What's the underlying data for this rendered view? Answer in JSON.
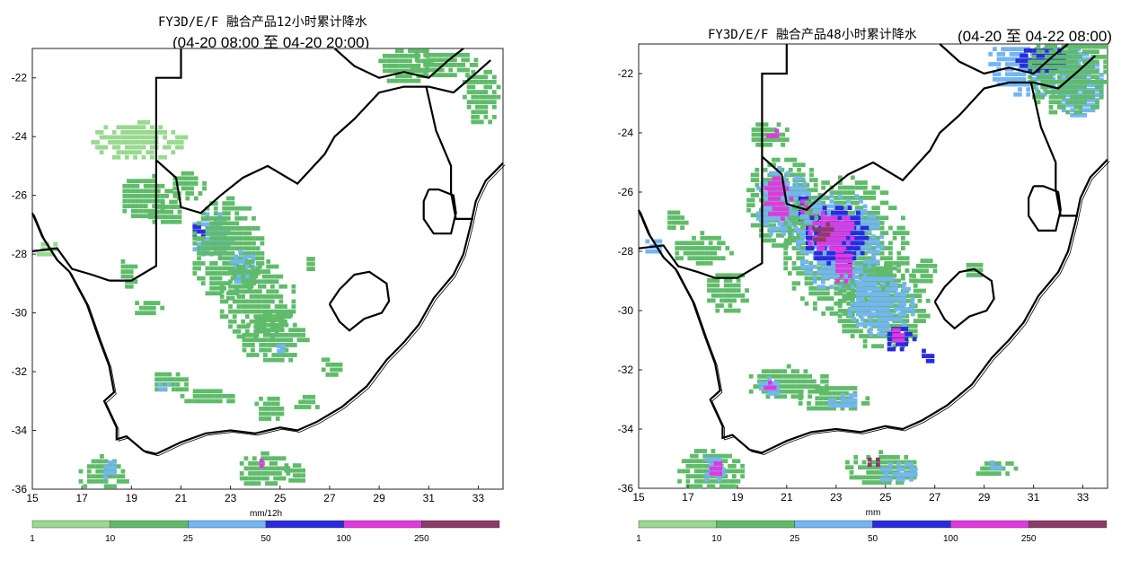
{
  "colors": {
    "c1": "#98d98f",
    "c2": "#5fbb6a",
    "c3": "#74b5f4",
    "c4": "#2a2adf",
    "c5": "#e039e0",
    "c6": "#8c3a6a",
    "border": "#000000"
  },
  "legend_ticks": [
    "1",
    "10",
    "25",
    "50",
    "100",
    "250"
  ],
  "maps": [
    {
      "title": "FY3D/E/F 融合产品12小时累计降水",
      "subtitle": "(04-20 08:00 至 04-20 20:00)",
      "unit": "mm/12h",
      "x_ticks": [
        "15",
        "17",
        "19",
        "21",
        "23",
        "25",
        "27",
        "29",
        "31",
        "33"
      ],
      "y_ticks": [
        "-22",
        "-24",
        "-26",
        "-28",
        "-30",
        "-32",
        "-34",
        "-36"
      ],
      "x_range": [
        15,
        34
      ],
      "y_range": [
        -36,
        -21
      ],
      "rain_cells": [
        [
          19.2,
          -24.1,
          1,
          2,
          0.7
        ],
        [
          19.5,
          -26.0,
          2,
          1.2,
          0.8
        ],
        [
          20.3,
          -26.5,
          2,
          0.8,
          0.5
        ],
        [
          21.2,
          -25.6,
          2,
          0.7,
          0.6
        ],
        [
          22.2,
          -27.3,
          3,
          0.9,
          0.8
        ],
        [
          21.6,
          -27.2,
          4,
          0.3,
          0.3
        ],
        [
          22.8,
          -27.8,
          2,
          1.5,
          1.8
        ],
        [
          23.4,
          -28.5,
          3,
          0.6,
          0.7
        ],
        [
          24.0,
          -29.5,
          2,
          1.6,
          1.4
        ],
        [
          24.7,
          -30.8,
          2,
          1.4,
          0.9
        ],
        [
          25.0,
          -31.1,
          3,
          0.3,
          0.3
        ],
        [
          18.8,
          -28.6,
          2,
          0.4,
          0.6
        ],
        [
          19.5,
          -29.8,
          2,
          0.7,
          0.3
        ],
        [
          20.5,
          -32.3,
          2,
          0.9,
          0.4
        ],
        [
          20.2,
          -32.5,
          3,
          0.3,
          0.2
        ],
        [
          22.0,
          -32.8,
          2,
          1.2,
          0.3
        ],
        [
          24.5,
          -33.2,
          2,
          0.7,
          0.5
        ],
        [
          26.0,
          -33.0,
          2,
          0.6,
          0.3
        ],
        [
          17.8,
          -35.4,
          2,
          1.1,
          0.6
        ],
        [
          18.0,
          -35.3,
          3,
          0.3,
          0.4
        ],
        [
          24.3,
          -35.3,
          2,
          1.1,
          0.6
        ],
        [
          24.2,
          -35.1,
          5,
          0.2,
          0.2
        ],
        [
          25.5,
          -35.4,
          2,
          0.5,
          0.4
        ],
        [
          30.0,
          -21.5,
          2,
          1.2,
          0.7
        ],
        [
          31.6,
          -21.4,
          2,
          1.5,
          0.6
        ],
        [
          33.0,
          -22.6,
          2,
          0.8,
          1.0
        ],
        [
          27.0,
          -31.8,
          2,
          0.5,
          0.4
        ],
        [
          15.5,
          -27.8,
          1,
          0.5,
          0.3
        ],
        [
          26.2,
          -28.3,
          2,
          0.3,
          0.3
        ]
      ]
    },
    {
      "title": "FY3D/E/F 融合产品48小时累计降水",
      "subtitle": "(04-20 至 04-22 08:00)",
      "unit": "mm",
      "x_ticks": [
        "15",
        "17",
        "19",
        "21",
        "23",
        "25",
        "27",
        "29",
        "31",
        "33"
      ],
      "y_ticks": [
        "-22",
        "-24",
        "-26",
        "-28",
        "-30",
        "-32",
        "-34",
        "-36"
      ],
      "x_range": [
        15,
        34
      ],
      "y_range": [
        -36,
        -21
      ],
      "rain_cells": [
        [
          20.2,
          -24.0,
          2,
          0.8,
          0.5
        ],
        [
          20.3,
          -24.0,
          5,
          0.3,
          0.2
        ],
        [
          20.8,
          -26.3,
          2,
          1.6,
          1.6
        ],
        [
          20.8,
          -26.3,
          3,
          1.2,
          1.2
        ],
        [
          20.5,
          -26.2,
          5,
          0.6,
          0.8
        ],
        [
          21.8,
          -26.5,
          4,
          0.5,
          0.5
        ],
        [
          21.8,
          -26.6,
          5,
          0.4,
          0.5
        ],
        [
          23.3,
          -27.8,
          2,
          2.6,
          2.4
        ],
        [
          23.0,
          -27.6,
          3,
          1.8,
          1.7
        ],
        [
          22.9,
          -27.4,
          4,
          1.3,
          1.1
        ],
        [
          22.7,
          -27.3,
          5,
          1.0,
          0.7
        ],
        [
          22.4,
          -27.3,
          6,
          0.5,
          0.4
        ],
        [
          23.2,
          -28.4,
          5,
          0.4,
          0.7
        ],
        [
          24.8,
          -29.8,
          2,
          1.9,
          1.5
        ],
        [
          24.7,
          -29.8,
          3,
          1.4,
          1.1
        ],
        [
          25.5,
          -30.9,
          4,
          0.6,
          0.5
        ],
        [
          25.4,
          -30.8,
          5,
          0.3,
          0.3
        ],
        [
          26.6,
          -31.5,
          4,
          0.3,
          0.3
        ],
        [
          18.5,
          -29.3,
          2,
          0.9,
          0.8
        ],
        [
          17.5,
          -27.9,
          2,
          1.2,
          0.6
        ],
        [
          21.0,
          -32.4,
          2,
          1.7,
          0.6
        ],
        [
          20.2,
          -32.5,
          3,
          0.5,
          0.4
        ],
        [
          20.2,
          -32.5,
          5,
          0.3,
          0.2
        ],
        [
          22.8,
          -32.9,
          2,
          1.5,
          0.5
        ],
        [
          23.2,
          -33.0,
          3,
          0.7,
          0.3
        ],
        [
          17.8,
          -35.4,
          2,
          1.4,
          0.8
        ],
        [
          18.0,
          -35.3,
          3,
          0.5,
          0.5
        ],
        [
          18.0,
          -35.3,
          5,
          0.3,
          0.3
        ],
        [
          24.8,
          -35.3,
          2,
          1.6,
          0.6
        ],
        [
          25.4,
          -35.4,
          3,
          0.8,
          0.4
        ],
        [
          24.4,
          -35.1,
          6,
          0.3,
          0.2
        ],
        [
          29.4,
          -35.3,
          2,
          0.9,
          0.3
        ],
        [
          29.3,
          -35.2,
          3,
          0.4,
          0.2
        ],
        [
          31.2,
          -21.6,
          3,
          2.2,
          1.2
        ],
        [
          31.3,
          -21.5,
          4,
          1.2,
          0.5
        ],
        [
          32.8,
          -22.4,
          3,
          1.0,
          1.1
        ],
        [
          32.4,
          -21.8,
          2,
          1.8,
          1.6
        ],
        [
          26.5,
          -28.6,
          2,
          0.6,
          0.5
        ],
        [
          28.5,
          -28.6,
          2,
          0.4,
          0.3
        ],
        [
          15.5,
          -27.8,
          3,
          0.4,
          0.3
        ],
        [
          16.5,
          -26.9,
          2,
          0.5,
          0.4
        ]
      ]
    }
  ]
}
